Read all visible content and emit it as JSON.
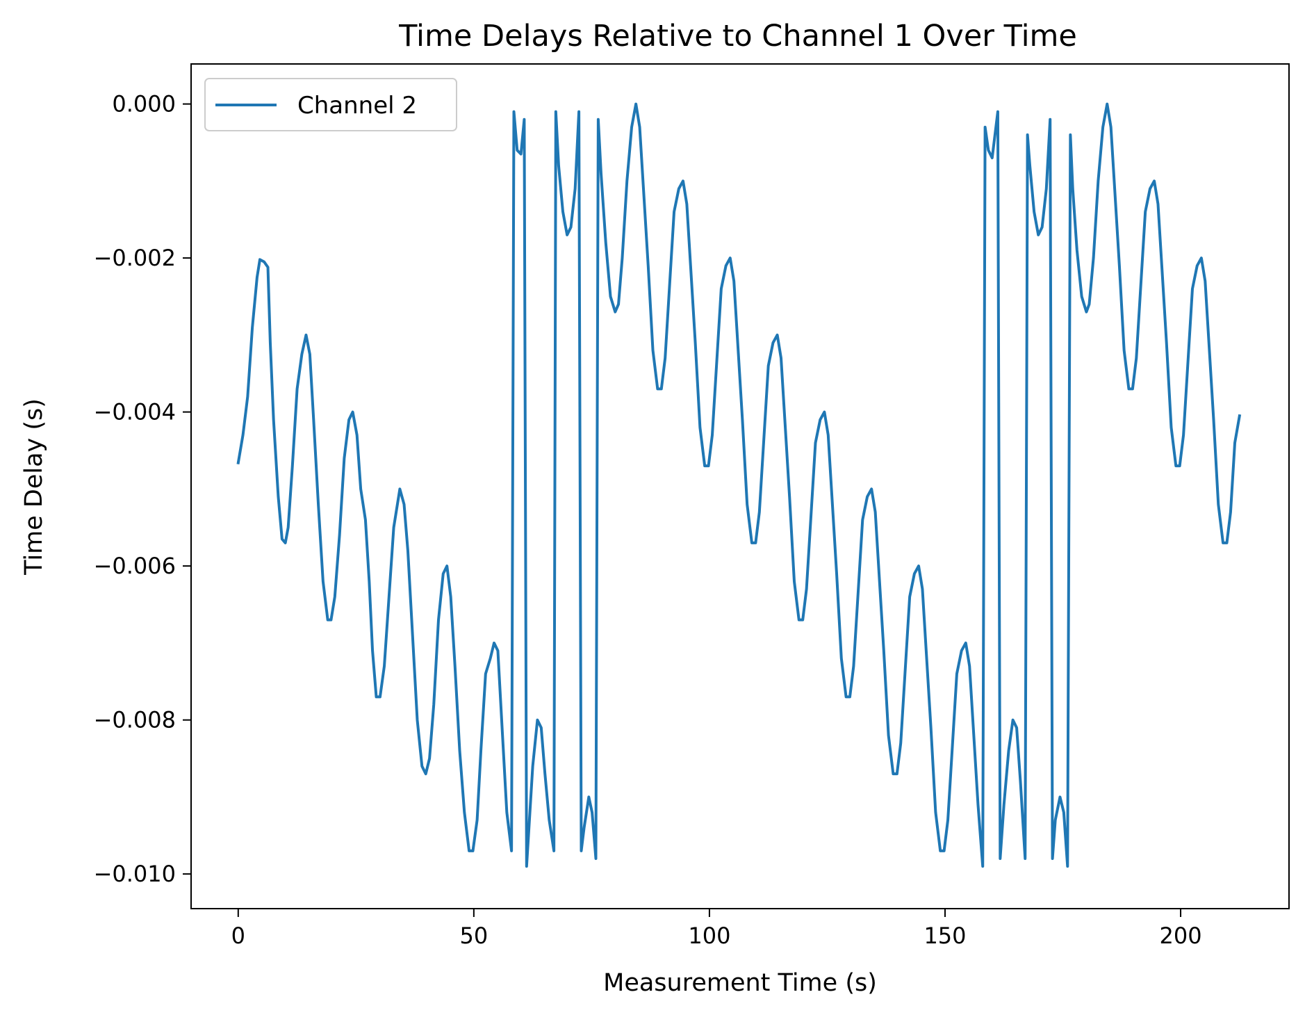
{
  "chart_data": {
    "type": "line",
    "title": "Time Delays Relative to Channel 1 Over Time",
    "xlabel": "Measurement Time (s)",
    "ylabel": "Time Delay (s)",
    "xlim": [
      -10,
      223
    ],
    "ylim": [
      -0.01045,
      0.00052
    ],
    "x_ticks": [
      0,
      50,
      100,
      150,
      200
    ],
    "x_tick_labels": [
      "0",
      "50",
      "100",
      "150",
      "200"
    ],
    "y_ticks": [
      0.0,
      -0.002,
      -0.004,
      -0.006,
      -0.008,
      -0.01
    ],
    "y_tick_labels": [
      "0.000",
      "−0.002",
      "−0.004",
      "−0.006",
      "−0.008",
      "−0.010"
    ],
    "grid": false,
    "legend": {
      "position": "top-left",
      "entries": [
        "Channel 2"
      ]
    },
    "series": [
      {
        "name": "Channel 2",
        "color": "#1f77b4",
        "x": [
          0,
          1,
          2,
          3,
          4,
          4.6,
          5.5,
          6.3,
          6.8,
          7.5,
          8.5,
          9.3,
          10,
          10.6,
          11.5,
          12.5,
          13.5,
          14.4,
          15.2,
          16,
          17,
          18,
          19,
          19.7,
          20.5,
          21.5,
          22.5,
          23.5,
          24.3,
          25.2,
          26,
          27,
          27.8,
          28.5,
          29.3,
          30.1,
          31,
          32,
          33,
          34.3,
          35.2,
          36,
          37,
          38,
          39,
          39.8,
          40.6,
          41.5,
          42.5,
          43.5,
          44.3,
          45.1,
          46,
          47,
          48,
          49,
          49.8,
          50.7,
          51.5,
          52.5,
          53.5,
          54.3,
          55.1,
          56,
          57,
          58,
          58.5,
          59.2,
          60,
          60.7,
          61.2,
          61.7,
          62.5,
          63.5,
          64.3,
          65.1,
          66,
          67,
          67.4,
          68,
          68.9,
          69.8,
          70.6,
          71.5,
          72.3,
          72.8,
          73.4,
          74.4,
          75.1,
          75.9,
          76.4,
          77,
          78,
          79,
          80,
          80.7,
          81.5,
          82.5,
          83.5,
          84.4,
          85.2,
          86,
          87,
          88,
          89,
          89.8,
          90.6,
          91.5,
          92.5,
          93.5,
          94.4,
          95.2,
          96,
          97,
          98,
          99,
          99.8,
          100.6,
          101.5,
          102.5,
          103.5,
          104.4,
          105.2,
          106,
          107,
          108,
          109,
          109.8,
          110.6,
          111.5,
          112.5,
          113.5,
          114.4,
          115.2,
          116,
          117,
          118,
          119,
          119.8,
          120.6,
          121.5,
          122.5,
          123.5,
          124.4,
          125.2,
          126,
          127,
          128,
          129,
          129.8,
          130.6,
          131.5,
          132.5,
          133.5,
          134.4,
          135.2,
          136,
          137,
          138,
          139,
          139.8,
          140.6,
          141.5,
          142.5,
          143.5,
          144.4,
          145.2,
          146,
          147,
          148,
          149,
          149.8,
          150.6,
          151.5,
          152.5,
          153.5,
          154.4,
          155.2,
          156,
          157,
          158,
          158.5,
          159.2,
          160,
          160.6,
          161.2,
          161.7,
          162.5,
          163.5,
          164.4,
          165.2,
          166,
          167,
          167.5,
          168,
          168.9,
          169.8,
          170.6,
          171.5,
          172.3,
          172.8,
          173.4,
          174.4,
          175.2,
          176,
          176.6,
          177.1,
          178,
          179,
          180,
          180.6,
          181.5,
          182.5,
          183.5,
          184.4,
          185.2,
          186,
          187,
          188,
          189,
          189.8,
          190.6,
          191.5,
          192.5,
          193.5,
          194.4,
          195.2,
          196,
          197,
          198,
          199,
          199.8,
          200.6,
          201.5,
          202.5,
          203.5,
          204.4,
          205.2,
          206,
          207,
          208,
          209,
          209.8,
          210.6,
          211.5,
          212.5
        ],
        "y": [
          -0.00466,
          -0.0043,
          -0.0038,
          -0.0029,
          -0.00225,
          -0.00202,
          -0.00205,
          -0.00212,
          -0.0031,
          -0.0041,
          -0.0051,
          -0.00565,
          -0.0057,
          -0.0055,
          -0.0047,
          -0.0037,
          -0.00325,
          -0.003,
          -0.00325,
          -0.0041,
          -0.0052,
          -0.0062,
          -0.0067,
          -0.0067,
          -0.0064,
          -0.0056,
          -0.0046,
          -0.0041,
          -0.004,
          -0.0043,
          -0.005,
          -0.0054,
          -0.0062,
          -0.0071,
          -0.0077,
          -0.0077,
          -0.0073,
          -0.0064,
          -0.0055,
          -0.005,
          -0.0052,
          -0.0058,
          -0.0069,
          -0.008,
          -0.0086,
          -0.0087,
          -0.0085,
          -0.0078,
          -0.0067,
          -0.0061,
          -0.006,
          -0.0064,
          -0.0073,
          -0.0084,
          -0.0092,
          -0.0097,
          -0.0097,
          -0.0093,
          -0.0084,
          -0.0074,
          -0.0072,
          -0.007,
          -0.0071,
          -0.0081,
          -0.0092,
          -0.0097,
          -0.0001,
          -0.0006,
          -0.00065,
          -0.0002,
          -0.0099,
          -0.0094,
          -0.0086,
          -0.008,
          -0.0081,
          -0.0087,
          -0.0093,
          -0.0097,
          -0.0001,
          -0.0008,
          -0.0014,
          -0.0017,
          -0.0016,
          -0.0011,
          -0.0001,
          -0.0097,
          -0.0094,
          -0.009,
          -0.0092,
          -0.0098,
          -0.0002,
          -0.0009,
          -0.0018,
          -0.0025,
          -0.0027,
          -0.0026,
          -0.002,
          -0.001,
          -0.0003,
          0.0,
          -0.0003,
          -0.0011,
          -0.0021,
          -0.0032,
          -0.0037,
          -0.0037,
          -0.0033,
          -0.0024,
          -0.0014,
          -0.0011,
          -0.001,
          -0.0013,
          -0.0021,
          -0.0031,
          -0.0042,
          -0.0047,
          -0.0047,
          -0.0043,
          -0.0034,
          -0.0024,
          -0.0021,
          -0.002,
          -0.0023,
          -0.0031,
          -0.0041,
          -0.0052,
          -0.0057,
          -0.0057,
          -0.0053,
          -0.0044,
          -0.0034,
          -0.0031,
          -0.003,
          -0.0033,
          -0.0041,
          -0.0051,
          -0.0062,
          -0.0067,
          -0.0067,
          -0.0063,
          -0.0054,
          -0.0044,
          -0.0041,
          -0.004,
          -0.0043,
          -0.0051,
          -0.0061,
          -0.0072,
          -0.0077,
          -0.0077,
          -0.0073,
          -0.0064,
          -0.0054,
          -0.0051,
          -0.005,
          -0.0053,
          -0.0061,
          -0.0071,
          -0.0082,
          -0.0087,
          -0.0087,
          -0.0083,
          -0.0074,
          -0.0064,
          -0.0061,
          -0.006,
          -0.0063,
          -0.0071,
          -0.0081,
          -0.0092,
          -0.0097,
          -0.0097,
          -0.0093,
          -0.0084,
          -0.0074,
          -0.0071,
          -0.007,
          -0.0073,
          -0.0081,
          -0.0091,
          -0.0099,
          -0.0003,
          -0.0006,
          -0.0007,
          -0.0004,
          -0.0001,
          -0.0098,
          -0.0091,
          -0.0084,
          -0.008,
          -0.0081,
          -0.0088,
          -0.0098,
          -0.0004,
          -0.0008,
          -0.0014,
          -0.0017,
          -0.0016,
          -0.0011,
          -0.0002,
          -0.0098,
          -0.0093,
          -0.009,
          -0.0092,
          -0.0099,
          -0.0004,
          -0.0011,
          -0.0019,
          -0.0025,
          -0.0027,
          -0.0026,
          -0.002,
          -0.001,
          -0.0003,
          0.0,
          -0.0003,
          -0.0011,
          -0.0021,
          -0.0032,
          -0.0037,
          -0.0037,
          -0.0033,
          -0.0024,
          -0.0014,
          -0.0011,
          -0.001,
          -0.0013,
          -0.0021,
          -0.0031,
          -0.0042,
          -0.0047,
          -0.0047,
          -0.0043,
          -0.0034,
          -0.0024,
          -0.0021,
          -0.002,
          -0.0023,
          -0.0031,
          -0.0041,
          -0.0052,
          -0.0057,
          -0.0057,
          -0.0053,
          -0.0044,
          -0.00405
        ]
      }
    ]
  }
}
